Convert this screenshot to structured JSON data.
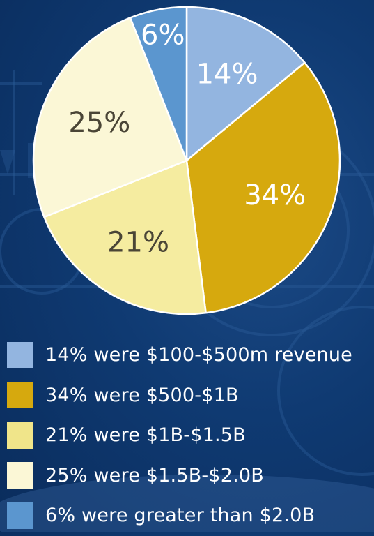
{
  "chart_data": {
    "type": "pie",
    "slices": [
      {
        "label": "14%",
        "value": 14,
        "color": "#93b5e0",
        "label_color": "#ffffff"
      },
      {
        "label": "34%",
        "value": 34,
        "color": "#d6a90e",
        "label_color": "#ffffff"
      },
      {
        "label": "21%",
        "value": 21,
        "color": "#f5eca0",
        "label_color": "#4a4536"
      },
      {
        "label": "25%",
        "value": 25,
        "color": "#fbf7d6",
        "label_color": "#4a4536"
      },
      {
        "label": "6%",
        "value": 6,
        "color": "#5b96cf",
        "label_color": "#ffffff"
      }
    ],
    "legend": [
      {
        "text": "14% were $100-$500m revenue",
        "color": "#93b5e0"
      },
      {
        "text": "34% were $500-$1B",
        "color": "#d6a90e"
      },
      {
        "text": "21% were $1B-$1.5B",
        "color": "#f0e58a"
      },
      {
        "text": "25% were $1.5B-$2.0B",
        "color": "#fbf7d6"
      },
      {
        "text": "6% were greater than $2.0B",
        "color": "#5b96cf"
      }
    ]
  }
}
